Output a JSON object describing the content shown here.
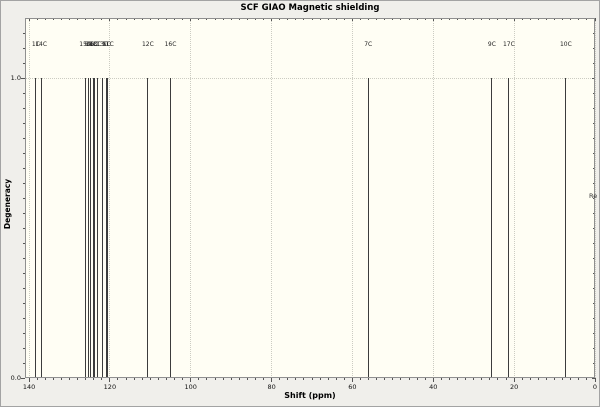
{
  "window": {
    "background": "#f0efeb"
  },
  "right_clipped_text": "Re",
  "colors": {
    "plot_bg": "#fffef4",
    "window_bg": "#f0efeb",
    "peak_line": "#3c3c3c",
    "frame": "#8f8f8f",
    "grid": "#ccccc2",
    "tick": "#555555",
    "text": "#141414"
  },
  "chart_data": {
    "type": "bar",
    "subtype": "stick-spectrum",
    "title": "SCF GIAO Magnetic shielding",
    "xlabel": "Shift (ppm)",
    "ylabel": "Degeneracy",
    "x_axis_reversed": true,
    "xlim": [
      141,
      0
    ],
    "ylim": [
      0,
      1.2
    ],
    "grid": "dotted vertical lines at x major ticks, dotted horizontal line at y=1.0",
    "legend_position": "none",
    "x_major_ticks": [
      140,
      120,
      100,
      80,
      60,
      40,
      20,
      0
    ],
    "x_major_tick_labels": [
      "140",
      "120",
      "100",
      "80",
      "60",
      "40",
      "20",
      "0"
    ],
    "x_minor_tick_step": 2,
    "y_major_ticks": [
      {
        "value": 0.0,
        "label": "0.0"
      },
      {
        "value": 1.0,
        "label": "1.0"
      }
    ],
    "y_minor_tick_step": 0.05,
    "peaks": [
      {
        "label": "1C",
        "shift_ppm": 138.3,
        "degeneracy": 1.0
      },
      {
        "label": "14C",
        "shift_ppm": 137.0,
        "degeneracy": 1.0
      },
      {
        "label": "15C",
        "shift_ppm": 126.1,
        "degeneracy": 1.0
      },
      {
        "label": "8C",
        "shift_ppm": 125.2,
        "degeneracy": 1.0
      },
      {
        "label": "2C",
        "shift_ppm": 124.9,
        "degeneracy": 1.0
      },
      {
        "label": "4C",
        "shift_ppm": 124.1,
        "degeneracy": 1.0
      },
      {
        "label": "6C",
        "shift_ppm": 123.9,
        "degeneracy": 1.0
      },
      {
        "label": "3C",
        "shift_ppm": 123.1,
        "degeneracy": 1.0
      },
      {
        "label": "13C",
        "shift_ppm": 121.9,
        "degeneracy": 1.0
      },
      {
        "label": "5C",
        "shift_ppm": 120.8,
        "degeneracy": 1.0
      },
      {
        "label": "11C",
        "shift_ppm": 120.5,
        "degeneracy": 1.0
      },
      {
        "label": "12C",
        "shift_ppm": 110.6,
        "degeneracy": 1.0
      },
      {
        "label": "16C",
        "shift_ppm": 105.0,
        "degeneracy": 1.0
      },
      {
        "label": "7C",
        "shift_ppm": 56.1,
        "degeneracy": 1.0
      },
      {
        "label": "9C",
        "shift_ppm": 25.5,
        "degeneracy": 1.0
      },
      {
        "label": "17C",
        "shift_ppm": 21.3,
        "degeneracy": 1.0
      },
      {
        "label": "10C",
        "shift_ppm": 7.2,
        "degeneracy": 1.0
      }
    ]
  }
}
